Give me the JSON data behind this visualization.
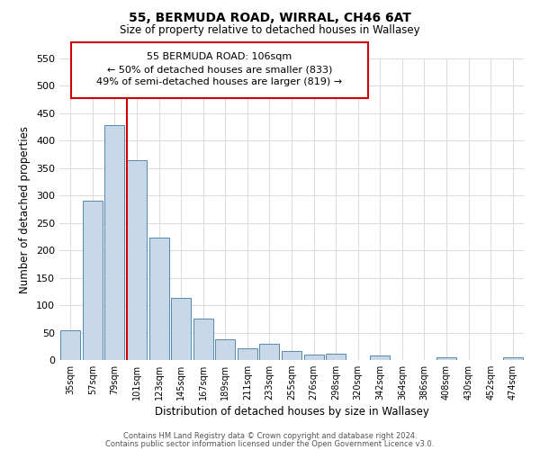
{
  "title": "55, BERMUDA ROAD, WIRRAL, CH46 6AT",
  "subtitle": "Size of property relative to detached houses in Wallasey",
  "xlabel": "Distribution of detached houses by size in Wallasey",
  "ylabel": "Number of detached properties",
  "bar_labels": [
    "35sqm",
    "57sqm",
    "79sqm",
    "101sqm",
    "123sqm",
    "145sqm",
    "167sqm",
    "189sqm",
    "211sqm",
    "233sqm",
    "255sqm",
    "276sqm",
    "298sqm",
    "320sqm",
    "342sqm",
    "364sqm",
    "386sqm",
    "408sqm",
    "430sqm",
    "452sqm",
    "474sqm"
  ],
  "bar_heights": [
    55,
    290,
    428,
    365,
    224,
    113,
    76,
    38,
    22,
    29,
    17,
    10,
    11,
    0,
    9,
    0,
    0,
    5,
    0,
    0,
    5
  ],
  "bar_color": "#c8d8e8",
  "bar_edge_color": "#5588aa",
  "vline_index": 3,
  "vline_color": "#cc0000",
  "ylim": [
    0,
    550
  ],
  "yticks": [
    0,
    50,
    100,
    150,
    200,
    250,
    300,
    350,
    400,
    450,
    500,
    550
  ],
  "annotation_title": "55 BERMUDA ROAD: 106sqm",
  "annotation_line1": "← 50% of detached houses are smaller (833)",
  "annotation_line2": "49% of semi-detached houses are larger (819) →",
  "annotation_box_color": "#ffffff",
  "annotation_box_edge": "#cc0000",
  "footer_line1": "Contains HM Land Registry data © Crown copyright and database right 2024.",
  "footer_line2": "Contains public sector information licensed under the Open Government Licence v3.0.",
  "background_color": "#ffffff",
  "grid_color": "#dddddd"
}
